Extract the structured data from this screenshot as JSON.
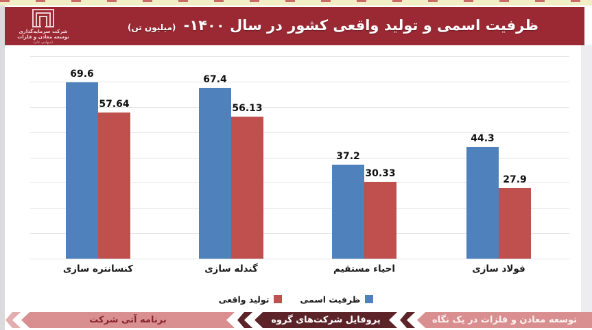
{
  "header": {
    "bg": "#9a2933",
    "title": "ظرفیت اسمی و تولید واقعی کشور در سال ۱۴۰۰-",
    "title_unit": "(میلیون تن)",
    "logo": {
      "icon": "nested-squares-logo",
      "line1": "شرکت سرمایه‌گذاری",
      "line2": "توسعه معادن و فلزات",
      "line3": "(سهامی عام)"
    }
  },
  "chart_data": {
    "type": "bar",
    "title": "ظرفیت اسمی و تولید واقعی کشور در سال ۱۴۰۰ (میلیون تن)",
    "categories": [
      "کنسانتره سازی",
      "گندله سازی",
      "احیاء مستقیم",
      "فولاد سازی"
    ],
    "series": [
      {
        "name": "ظرفیت اسمی",
        "color": "#4f81bd",
        "values": [
          69.6,
          67.4,
          37.2,
          44.3
        ]
      },
      {
        "name": "تولید واقعی",
        "color": "#c0504d",
        "values": [
          57.64,
          56.13,
          30.33,
          27.9
        ]
      }
    ],
    "ylim": [
      0,
      80
    ],
    "gridline_step": 10,
    "grid": true,
    "value_labels": true,
    "legend_position": "bottom",
    "rtl": true,
    "xlabel": "",
    "ylabel": ""
  },
  "legend": {
    "items": [
      {
        "label": "ظرفیت اسمی",
        "color": "#4f81bd"
      },
      {
        "label": "تولید واقعی",
        "color": "#c0504d"
      }
    ]
  },
  "footer_nav": {
    "active_bg": "#5c2428",
    "inactive_bg": "#d98f90",
    "tabs": [
      {
        "label": "برنامه آتی شرکت",
        "active": false
      },
      {
        "label": "پروفایل شرکت‌های گروه",
        "active": true
      },
      {
        "label": "توسعه معادن و فلزات در یک نگاه",
        "active": false
      }
    ]
  }
}
